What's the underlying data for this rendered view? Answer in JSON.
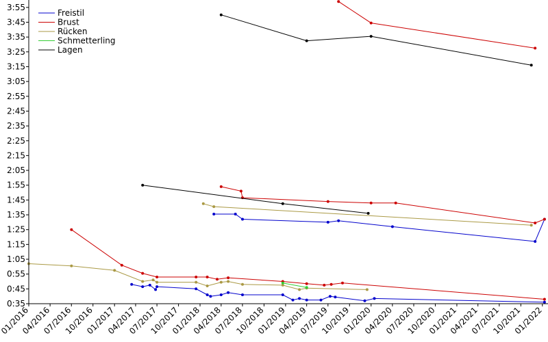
{
  "chart_data": {
    "type": "line",
    "title": "",
    "xlabel": "",
    "ylabel": "",
    "legend_position": "top-left",
    "grid": false,
    "xlim": [
      "2016-01-01",
      "2022-01-25"
    ],
    "ylim": [
      "0:35",
      "4:00"
    ],
    "x_tick_labels": [
      "01/2016",
      "04/2016",
      "07/2016",
      "10/2016",
      "01/2017",
      "04/2017",
      "07/2017",
      "10/2017",
      "01/2018",
      "04/2018",
      "07/2018",
      "10/2018",
      "01/2019",
      "04/2019",
      "07/2019",
      "10/2019",
      "01/2020",
      "04/2020",
      "07/2020",
      "10/2020",
      "01/2021",
      "04/2021",
      "07/2021",
      "10/2021",
      "01/2022"
    ],
    "y_tick_labels": [
      "0:35",
      "0:45",
      "0:55",
      "1:05",
      "1:15",
      "1:25",
      "1:35",
      "1:45",
      "1:55",
      "2:05",
      "2:15",
      "2:25",
      "2:35",
      "2:45",
      "2:55",
      "3:05",
      "3:15",
      "3:25",
      "3:35",
      "3:45",
      "3:55"
    ],
    "series": [
      {
        "name": "Freistil",
        "color": "#0000cc",
        "segments": [
          [
            [
              "2017-03-15",
              "0:48"
            ],
            [
              "2017-05-01",
              "0:46.5"
            ],
            [
              "2017-06-01",
              "0:47.5"
            ],
            [
              "2017-06-25",
              "0:44.5"
            ],
            [
              "2017-07-01",
              "0:46.5"
            ],
            [
              "2017-12-15",
              "0:45"
            ],
            [
              "2018-02-01",
              "0:41"
            ],
            [
              "2018-02-15",
              "0:40"
            ],
            [
              "2018-04-01",
              "0:41"
            ],
            [
              "2018-05-01",
              "0:42.5"
            ],
            [
              "2018-07-01",
              "0:41"
            ],
            [
              "2018-12-20",
              "0:41"
            ],
            [
              "2019-02-01",
              "0:37.5"
            ],
            [
              "2019-03-01",
              "0:38.5"
            ],
            [
              "2019-04-01",
              "0:37.5"
            ],
            [
              "2019-06-01",
              "0:37.5"
            ],
            [
              "2019-07-10",
              "0:40"
            ],
            [
              "2019-08-01",
              "0:39.5"
            ],
            [
              "2019-12-05",
              "0:37"
            ],
            [
              "2020-01-15",
              "0:38.5"
            ],
            [
              "2022-01-10",
              "0:36"
            ]
          ],
          [
            [
              "2018-03-01",
              "1:35.5"
            ],
            [
              "2018-06-01",
              "1:35.5"
            ],
            [
              "2018-07-01",
              "1:32"
            ],
            [
              "2019-07-01",
              "1:30"
            ],
            [
              "2019-08-15",
              "1:31"
            ],
            [
              "2020-04-01",
              "1:27"
            ],
            [
              "2021-12-01",
              "1:17"
            ],
            [
              "2022-01-10",
              "1:32"
            ]
          ]
        ]
      },
      {
        "name": "Brust",
        "color": "#cc0000",
        "segments": [
          [
            [
              "2016-07-01",
              "1:25"
            ],
            [
              "2017-02-01",
              "1:01"
            ],
            [
              "2017-05-01",
              "0:55.5"
            ],
            [
              "2017-07-01",
              "0:53"
            ],
            [
              "2017-12-15",
              "0:53"
            ],
            [
              "2018-02-01",
              "0:53"
            ],
            [
              "2018-03-15",
              "0:51.5"
            ],
            [
              "2018-05-01",
              "0:52.5"
            ],
            [
              "2018-12-20",
              "0:50"
            ],
            [
              "2019-04-01",
              "0:48.5"
            ],
            [
              "2019-06-15",
              "0:47.5"
            ],
            [
              "2019-07-15",
              "0:48"
            ],
            [
              "2019-09-01",
              "0:49"
            ],
            [
              "2022-01-10",
              "0:38"
            ]
          ],
          [
            [
              "2018-04-01",
              "1:54"
            ],
            [
              "2018-06-25",
              "1:51"
            ],
            [
              "2018-07-01",
              "1:46.5"
            ],
            [
              "2019-07-01",
              "1:44"
            ],
            [
              "2020-01-01",
              "1:43"
            ],
            [
              "2020-04-15",
              "1:43"
            ],
            [
              "2021-12-01",
              "1:29.5"
            ],
            [
              "2022-01-10",
              "1:32"
            ]
          ],
          [
            [
              "2019-08-15",
              "3:59"
            ],
            [
              "2020-01-01",
              "3:44.5"
            ],
            [
              "2021-12-01",
              "3:27.5"
            ]
          ]
        ]
      },
      {
        "name": "Rücken",
        "color": "#aa9944",
        "segments": [
          [
            [
              "2016-01-01",
              "1:02"
            ],
            [
              "2016-07-01",
              "1:00.5"
            ],
            [
              "2017-01-01",
              "0:57.5"
            ],
            [
              "2017-05-01",
              "0:50"
            ],
            [
              "2017-06-15",
              "0:51"
            ],
            [
              "2017-07-01",
              "0:49.5"
            ],
            [
              "2017-12-15",
              "0:49.5"
            ],
            [
              "2018-02-01",
              "0:47"
            ],
            [
              "2018-04-01",
              "0:49.5"
            ],
            [
              "2018-05-01",
              "0:50"
            ],
            [
              "2018-07-01",
              "0:48"
            ],
            [
              "2018-12-20",
              "0:47.5"
            ],
            [
              "2019-03-01",
              "0:44.5"
            ],
            [
              "2019-04-01",
              "0:45.5"
            ],
            [
              "2019-12-15",
              "0:44.5"
            ]
          ],
          [
            [
              "2018-01-15",
              "1:42.5"
            ],
            [
              "2018-03-01",
              "1:40.5"
            ],
            [
              "2021-11-15",
              "1:28"
            ]
          ]
        ]
      },
      {
        "name": "Schmetterling",
        "color": "#33cc33",
        "segments": [
          [
            [
              "2018-12-20",
              "0:49"
            ],
            [
              "2019-04-01",
              "0:46"
            ]
          ]
        ]
      },
      {
        "name": "Lagen",
        "color": "#000000",
        "segments": [
          [
            [
              "2017-05-01",
              "1:55"
            ],
            [
              "2018-12-20",
              "1:42.5"
            ],
            [
              "2019-12-20",
              "1:36"
            ]
          ],
          [
            [
              "2018-04-01",
              "3:50"
            ],
            [
              "2019-04-01",
              "3:32.5"
            ],
            [
              "2020-01-01",
              "3:35.5"
            ],
            [
              "2021-11-15",
              "3:16"
            ]
          ]
        ]
      }
    ]
  }
}
